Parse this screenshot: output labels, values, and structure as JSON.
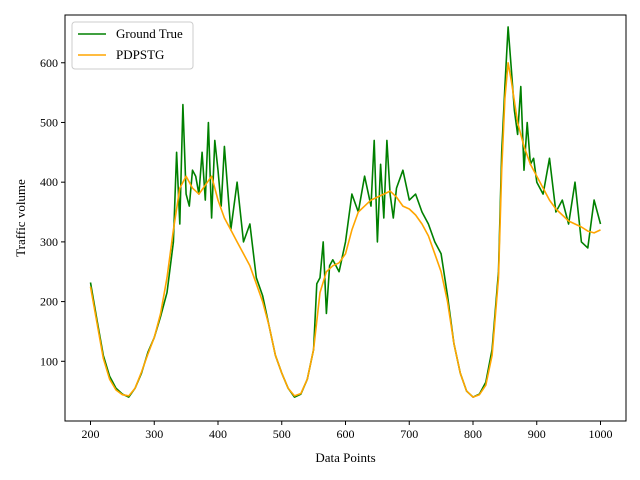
{
  "chart_data": {
    "type": "line",
    "title": "",
    "xlabel": "Data Points",
    "ylabel": "Traffic volume",
    "xlim": [
      200,
      1000
    ],
    "ylim": [
      0,
      680
    ],
    "xticks": [
      200,
      300,
      400,
      500,
      600,
      700,
      800,
      900,
      1000
    ],
    "yticks": [
      100,
      200,
      300,
      400,
      500,
      600
    ],
    "legend": {
      "position": "top-left"
    },
    "grid": false,
    "series": [
      {
        "name": "Ground True",
        "color": "#008000",
        "x": [
          200,
          210,
          220,
          230,
          240,
          250,
          260,
          270,
          280,
          290,
          300,
          310,
          320,
          330,
          335,
          340,
          345,
          350,
          355,
          360,
          365,
          370,
          375,
          380,
          385,
          390,
          395,
          400,
          405,
          410,
          420,
          430,
          440,
          450,
          460,
          470,
          480,
          490,
          500,
          510,
          520,
          530,
          540,
          550,
          555,
          560,
          565,
          570,
          575,
          580,
          590,
          600,
          610,
          620,
          630,
          640,
          645,
          650,
          655,
          660,
          665,
          670,
          675,
          680,
          690,
          700,
          710,
          720,
          730,
          740,
          750,
          760,
          770,
          780,
          790,
          800,
          810,
          820,
          830,
          840,
          845,
          850,
          855,
          860,
          865,
          870,
          875,
          880,
          885,
          890,
          895,
          900,
          910,
          920,
          930,
          940,
          950,
          960,
          970,
          980,
          990,
          1000
        ],
        "values": [
          232,
          170,
          110,
          75,
          55,
          45,
          40,
          55,
          80,
          115,
          140,
          175,
          215,
          300,
          450,
          330,
          530,
          380,
          360,
          420,
          410,
          380,
          450,
          370,
          500,
          340,
          470,
          420,
          360,
          460,
          320,
          400,
          300,
          330,
          240,
          210,
          160,
          110,
          80,
          55,
          40,
          45,
          70,
          120,
          230,
          240,
          300,
          180,
          260,
          270,
          250,
          300,
          380,
          350,
          410,
          360,
          470,
          300,
          430,
          340,
          470,
          380,
          340,
          390,
          420,
          370,
          380,
          350,
          330,
          300,
          280,
          210,
          130,
          80,
          50,
          40,
          45,
          65,
          120,
          250,
          450,
          560,
          660,
          590,
          520,
          480,
          560,
          420,
          500,
          430,
          440,
          400,
          380,
          440,
          350,
          370,
          330,
          400,
          300,
          290,
          370,
          330
        ]
      },
      {
        "name": "PDPSTG",
        "color": "#FFA500",
        "x": [
          200,
          210,
          220,
          230,
          240,
          250,
          260,
          270,
          280,
          290,
          300,
          310,
          320,
          330,
          340,
          350,
          360,
          370,
          380,
          390,
          400,
          410,
          420,
          430,
          440,
          450,
          460,
          470,
          480,
          490,
          500,
          510,
          520,
          530,
          540,
          550,
          560,
          570,
          580,
          590,
          600,
          610,
          620,
          630,
          640,
          650,
          660,
          670,
          680,
          690,
          700,
          710,
          720,
          730,
          740,
          750,
          760,
          770,
          780,
          790,
          800,
          810,
          820,
          830,
          840,
          845,
          850,
          855,
          860,
          870,
          880,
          890,
          900,
          910,
          920,
          930,
          940,
          950,
          960,
          970,
          980,
          990,
          1000
        ],
        "values": [
          225,
          165,
          105,
          70,
          52,
          44,
          42,
          55,
          82,
          112,
          140,
          180,
          240,
          320,
          390,
          410,
          390,
          380,
          395,
          410,
          370,
          340,
          320,
          300,
          280,
          260,
          230,
          200,
          160,
          110,
          80,
          55,
          42,
          46,
          70,
          120,
          215,
          250,
          260,
          265,
          280,
          320,
          350,
          360,
          370,
          375,
          380,
          385,
          375,
          360,
          355,
          345,
          330,
          310,
          280,
          250,
          200,
          130,
          80,
          50,
          40,
          44,
          60,
          110,
          240,
          420,
          540,
          600,
          570,
          500,
          460,
          430,
          410,
          390,
          370,
          355,
          345,
          335,
          330,
          325,
          318,
          315,
          320
        ]
      }
    ]
  }
}
